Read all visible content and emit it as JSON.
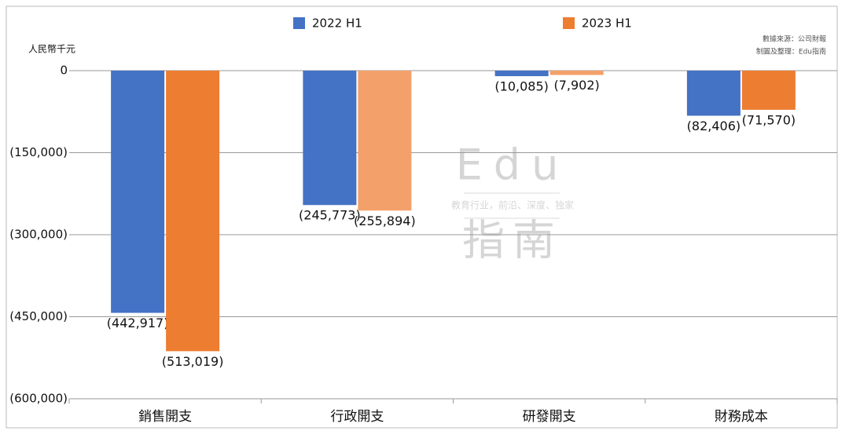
{
  "chart_data": {
    "type": "bar",
    "y_axis_label": "人民幣千元",
    "source_notes": [
      "數據來源：公司財報",
      "制圖及整理：Edu指南"
    ],
    "watermark": {
      "title": "Edu",
      "tagline": "教育行业，前沿、深度、独家",
      "subtitle": "指南"
    },
    "categories": [
      "銷售開支",
      "行政開支",
      "研發開支",
      "財務成本"
    ],
    "series": [
      {
        "name": "2022 H1",
        "color": "#4472c4",
        "values": [
          -442917,
          -245773,
          -10085,
          -82406
        ],
        "value_labels": [
          "(442,917)",
          "(245,773)",
          "(10,085)",
          "(82,406)"
        ]
      },
      {
        "name": "2023 H1",
        "color": "#ed7d31",
        "point_colors": [
          "#ed7d31",
          "#f4a06a",
          "#f4a06a",
          "#ed7d31"
        ],
        "values": [
          -513019,
          -255894,
          -7902,
          -71570
        ],
        "value_labels": [
          "(513,019)",
          "(255,894)",
          "(7,902)",
          "(71,570)"
        ]
      }
    ],
    "ylim": [
      -600000,
      0
    ],
    "yticks": [
      0,
      {
        "value": -150000,
        "label": "(150,000)"
      },
      {
        "value": -300000,
        "label": "(300,000)"
      },
      {
        "value": -450000,
        "label": "(450,000)"
      },
      {
        "value": -600000,
        "label": "(600,000)"
      }
    ],
    "grid": true,
    "legend": "top"
  }
}
